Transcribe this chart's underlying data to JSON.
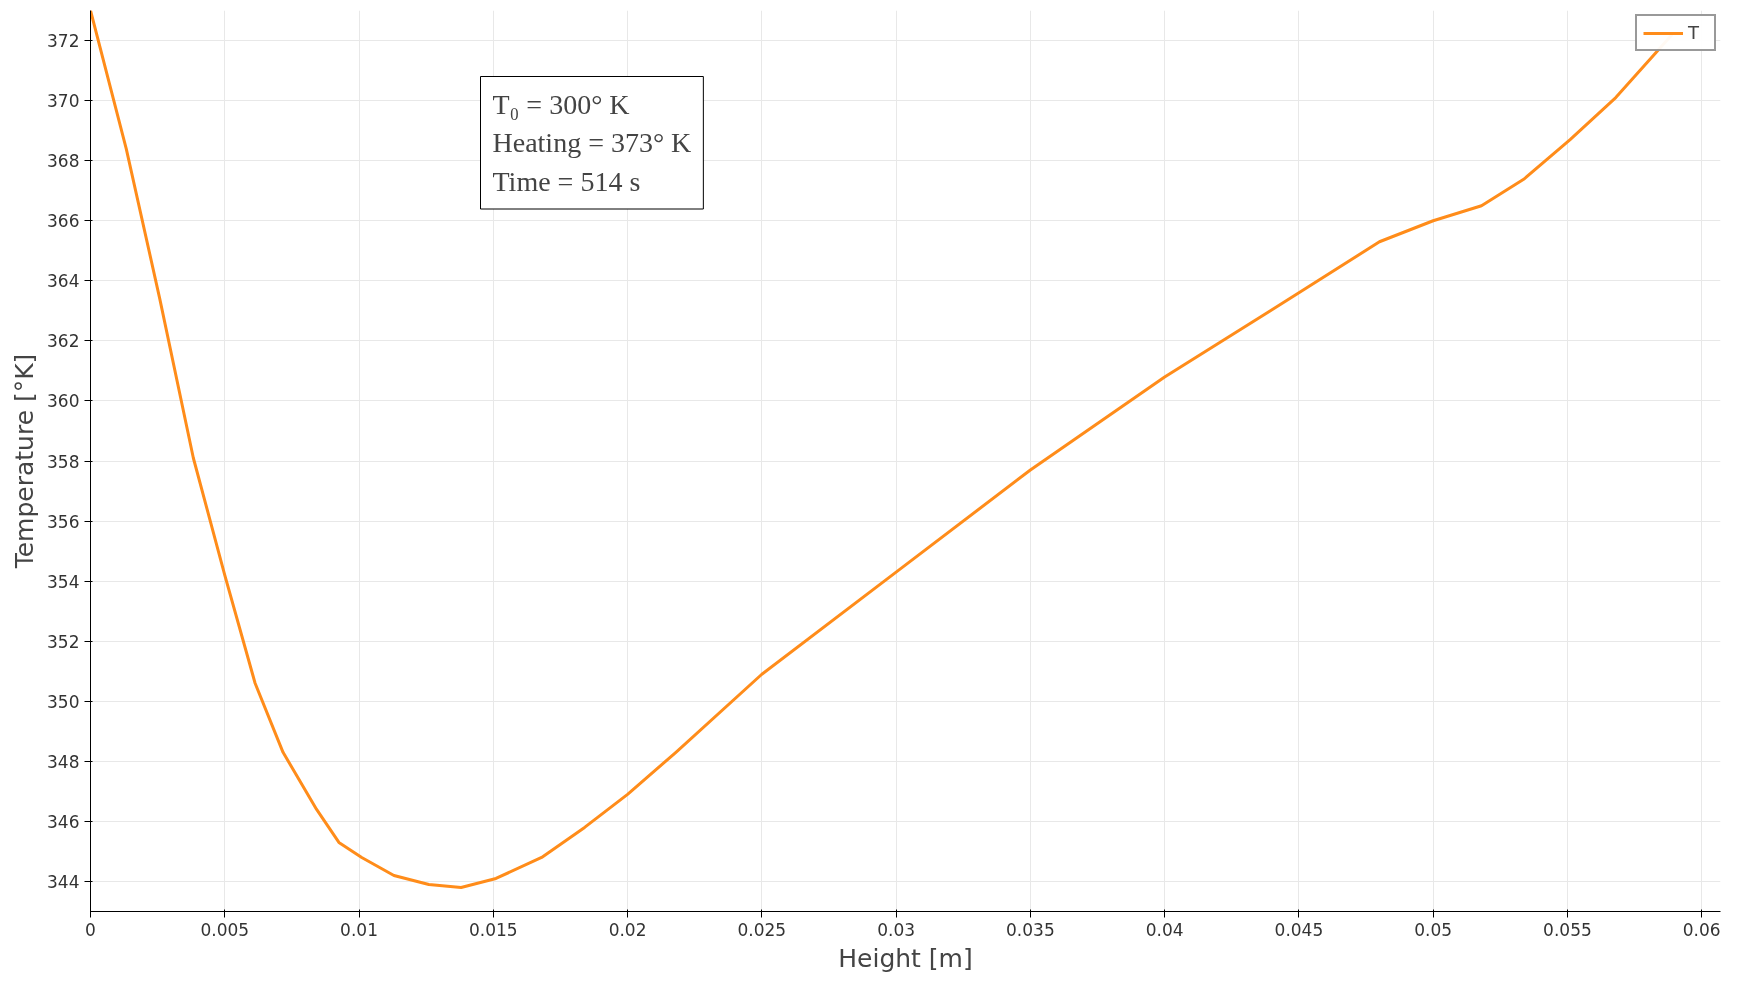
{
  "chart_data": {
    "type": "line",
    "xlabel": "Height [m]",
    "ylabel": "Temperature [°K]",
    "annotations": [
      "T₀ = 300° K\nHeating = 373° K\nTime = 514 s"
    ],
    "xlim": [
      0,
      0.0607
    ],
    "ylim": [
      343,
      373
    ],
    "xticks": [
      0,
      0.005,
      0.01,
      0.015,
      0.02,
      0.025,
      0.03,
      0.035,
      0.04,
      0.045,
      0.05,
      0.055,
      0.06
    ],
    "yticks": [
      344,
      346,
      348,
      350,
      352,
      354,
      356,
      358,
      360,
      362,
      364,
      366,
      368,
      370,
      372
    ],
    "grid": true,
    "legend": "top right",
    "marker": "none",
    "line_style": "solid",
    "series": [
      {
        "name": "T",
        "color": "#ff8c1a",
        "x": [
          0,
          0.00133,
          0.00258,
          0.00383,
          0.005,
          0.00613,
          0.00717,
          0.00842,
          0.00925,
          0.0101,
          0.0113,
          0.0126,
          0.0138,
          0.0151,
          0.0168,
          0.0184,
          0.02,
          0.0218,
          0.025,
          0.03,
          0.035,
          0.04,
          0.045,
          0.048,
          0.05,
          0.0518,
          0.0534,
          0.0551,
          0.0568,
          0.0583,
          0.0589
        ],
        "values": [
          373.0,
          368.4,
          363.4,
          358.1,
          354.2,
          350.6,
          348.3,
          346.4,
          345.3,
          344.8,
          344.2,
          343.9,
          343.8,
          344.1,
          344.8,
          345.8,
          346.9,
          348.3,
          350.9,
          354.3,
          357.7,
          360.8,
          363.6,
          365.3,
          366.0,
          366.5,
          367.4,
          368.7,
          370.1,
          371.6,
          372.2
        ]
      }
    ]
  }
}
